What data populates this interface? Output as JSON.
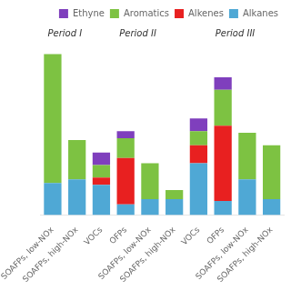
{
  "chart_data": {
    "type": "bar",
    "stacked": true,
    "categories": [
      "SOAFPs, low-NOx",
      "SOAFPs, high-NOx",
      "VOCs",
      "OFPs",
      "SOAFPs, low-NOx",
      "SOAFPs, high-NOx",
      "VOCs",
      "OFPs",
      "SOAFPs, low-NOx",
      "SOAFPs, high-NOx"
    ],
    "series": [
      {
        "name": "Alkanes",
        "color": "#4fa8d5",
        "values": [
          0.18,
          0.2,
          0.17,
          0.06,
          0.09,
          0.09,
          0.29,
          0.08,
          0.2,
          0.09
        ]
      },
      {
        "name": "Alkenes",
        "color": "#e82020",
        "values": [
          0.0,
          0.0,
          0.04,
          0.26,
          0.0,
          0.0,
          0.1,
          0.42,
          0.0,
          0.0
        ]
      },
      {
        "name": "Aromatics",
        "color": "#7dc242",
        "values": [
          0.72,
          0.22,
          0.07,
          0.11,
          0.2,
          0.05,
          0.08,
          0.2,
          0.26,
          0.3
        ]
      },
      {
        "name": "Ethyne",
        "color": "#7f3fbd",
        "values": [
          0.0,
          0.0,
          0.07,
          0.04,
          0.0,
          0.0,
          0.07,
          0.07,
          0.0,
          0.0
        ]
      }
    ],
    "ylim": [
      0,
      1.05
    ],
    "grid": false,
    "legend": "upper right",
    "tick_labels": "x",
    "annotations": [
      {
        "text": "Period I",
        "x": 0.5
      },
      {
        "text": "Period II",
        "x": 3.5
      },
      {
        "text": "Period III",
        "x": 7.5
      }
    ]
  }
}
